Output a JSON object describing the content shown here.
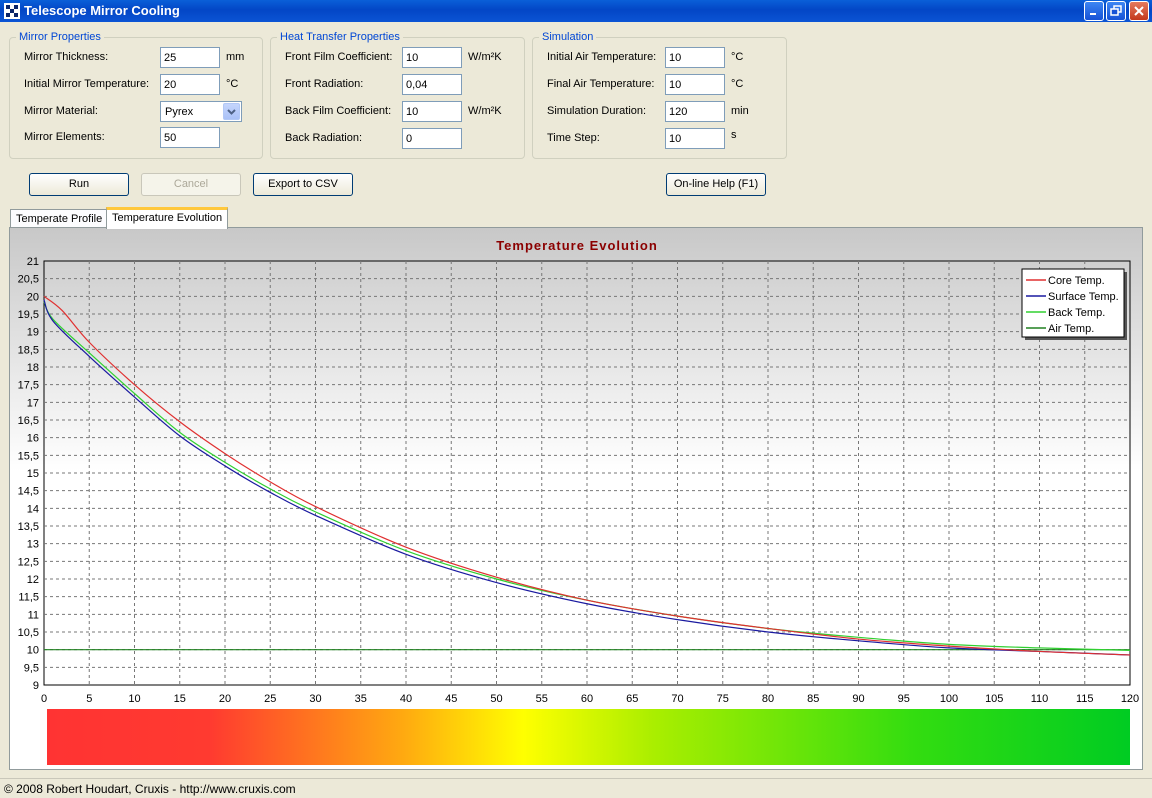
{
  "window": {
    "title": "Telescope Mirror Cooling"
  },
  "groups": {
    "mirror": {
      "title": "Mirror Properties",
      "thickness_label": "Mirror Thickness:",
      "thickness_value": "25",
      "thickness_unit": "mm",
      "init_temp_label": "Initial Mirror Temperature:",
      "init_temp_value": "20",
      "init_temp_unit": "°C",
      "material_label": "Mirror Material:",
      "material_value": "Pyrex",
      "elements_label": "Mirror Elements:",
      "elements_value": "50"
    },
    "heat": {
      "title": "Heat Transfer Properties",
      "front_film_label": "Front Film Coefficient:",
      "front_film_value": "10",
      "front_film_unit": "W/m²K",
      "front_rad_label": "Front Radiation:",
      "front_rad_value": "0,04",
      "back_film_label": "Back Film Coefficient:",
      "back_film_value": "10",
      "back_film_unit": "W/m²K",
      "back_rad_label": "Back Radiation:",
      "back_rad_value": "0"
    },
    "sim": {
      "title": "Simulation",
      "init_air_label": "Initial Air Temperature:",
      "init_air_value": "10",
      "init_air_unit": "°C",
      "final_air_label": "Final Air Temperature:",
      "final_air_value": "10",
      "final_air_unit": "°C",
      "duration_label": "Simulation Duration:",
      "duration_value": "120",
      "duration_unit": "min",
      "step_label": "Time Step:",
      "step_value": "10",
      "step_unit": "s"
    }
  },
  "buttons": {
    "run": "Run",
    "cancel": "Cancel",
    "export": "Export to CSV",
    "help": "On-line Help (F1)"
  },
  "tabs": [
    {
      "label": "Temperate Profile"
    },
    {
      "label": "Temperature Evolution"
    }
  ],
  "status": {
    "text": "© 2008 Robert Houdart, Cruxis  -  http://www.cruxis.com"
  },
  "chart_data": {
    "type": "line",
    "title": "Temperature Evolution",
    "xlim": [
      0,
      120
    ],
    "ylim": [
      9,
      21
    ],
    "xticks": [
      "0",
      "5",
      "10",
      "15",
      "20",
      "25",
      "30",
      "35",
      "40",
      "45",
      "50",
      "55",
      "60",
      "65",
      "70",
      "75",
      "80",
      "85",
      "90",
      "95",
      "100",
      "105",
      "110",
      "115",
      "120"
    ],
    "yticks": [
      "9",
      "9,5",
      "10",
      "10,5",
      "11",
      "11,5",
      "12",
      "12,5",
      "13",
      "13,5",
      "14",
      "14,5",
      "15",
      "15,5",
      "16",
      "16,5",
      "17",
      "17,5",
      "18",
      "18,5",
      "19",
      "19,5",
      "20",
      "20,5",
      "21"
    ],
    "grid": true,
    "legend_position": "top-right",
    "series": [
      {
        "name": "Core Temp.",
        "color": "#e03030",
        "x": [
          0,
          2,
          5,
          10,
          15,
          20,
          25,
          30,
          40,
          50,
          60,
          70,
          80,
          90,
          100,
          110,
          120
        ],
        "y": [
          20.0,
          19.6,
          18.7,
          17.5,
          16.45,
          15.55,
          14.75,
          14.05,
          12.9,
          12.05,
          11.4,
          10.95,
          10.6,
          10.3,
          10.1,
          9.95,
          9.85
        ]
      },
      {
        "name": "Surface Temp.",
        "color": "#1a1aa0",
        "x": [
          0,
          1,
          5,
          10,
          15,
          20,
          25,
          30,
          40,
          50,
          60,
          70,
          80,
          90,
          100,
          110,
          120
        ],
        "y": [
          19.9,
          19.3,
          18.3,
          17.15,
          16.05,
          15.2,
          14.45,
          13.8,
          12.7,
          11.9,
          11.3,
          10.85,
          10.5,
          10.25,
          10.05,
          9.95,
          9.85
        ]
      },
      {
        "name": "Back Temp.",
        "color": "#30d030",
        "x": [
          0,
          1,
          5,
          10,
          15,
          20,
          25,
          30,
          40,
          50,
          60,
          70,
          80,
          90,
          100,
          110,
          120
        ],
        "y": [
          19.85,
          19.35,
          18.4,
          17.25,
          16.15,
          15.3,
          14.55,
          13.9,
          12.8,
          12.0,
          11.4,
          10.95,
          10.6,
          10.35,
          10.15,
          10.05,
          9.98
        ]
      },
      {
        "name": "Air Temp.",
        "color": "#208020",
        "x": [
          0,
          120
        ],
        "y": [
          10,
          10
        ]
      }
    ],
    "color_bar": [
      "#ff3333",
      "#ff3a30",
      "#ffaa10",
      "#ffff00",
      "#aaee00",
      "#33dd10",
      "#00cc22"
    ]
  }
}
